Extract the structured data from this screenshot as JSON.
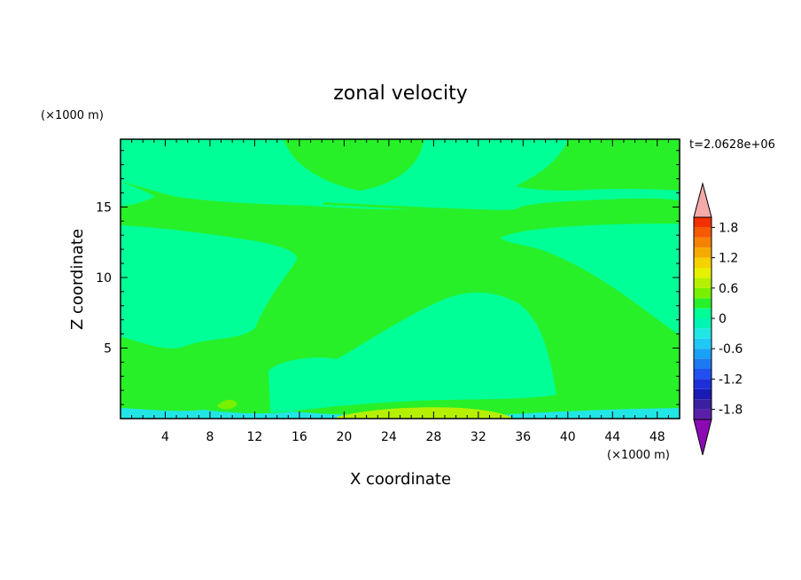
{
  "chart_data": {
    "type": "heatmap",
    "title": "zonal velocity",
    "xlabel": "X coordinate",
    "ylabel": "Z coordinate",
    "x_unit": "(×1000 m)",
    "y_unit": "(×1000 m)",
    "time_label": "t=2.0628e+06",
    "xlim": [
      0,
      50
    ],
    "ylim": [
      0,
      19.8
    ],
    "x_ticks": [
      4,
      8,
      12,
      16,
      20,
      24,
      28,
      32,
      36,
      40,
      44,
      48
    ],
    "y_ticks": [
      5,
      10,
      15
    ],
    "colorbar": {
      "levels": [
        -2.0,
        -1.8,
        -1.6,
        -1.4,
        -1.2,
        -1.0,
        -0.8,
        -0.6,
        -0.4,
        -0.2,
        0,
        0.2,
        0.4,
        0.6,
        0.8,
        1.0,
        1.2,
        1.4,
        1.6,
        1.8,
        2.0
      ],
      "colors": [
        "#5a1fa8",
        "#3a1fa0",
        "#1a1ab4",
        "#1e2fd8",
        "#2050f0",
        "#1e78f0",
        "#1aa0f5",
        "#20c8f5",
        "#20e6e6",
        "#00f5b4",
        "#00ff96",
        "#28f028",
        "#78f000",
        "#b4f000",
        "#e6f000",
        "#f5d200",
        "#f5aa00",
        "#f58200",
        "#f55a00",
        "#f53000"
      ],
      "tick_labels": [
        "1.8",
        "1.2",
        "0.6",
        "0",
        "-0.6",
        "-1.2",
        "-1.8"
      ],
      "tick_values": [
        1.8,
        1.2,
        0.6,
        0,
        -0.6,
        -1.2,
        -1.8
      ],
      "over_color": "#f5aaaa",
      "under_color": "#8c0ab4"
    }
  }
}
